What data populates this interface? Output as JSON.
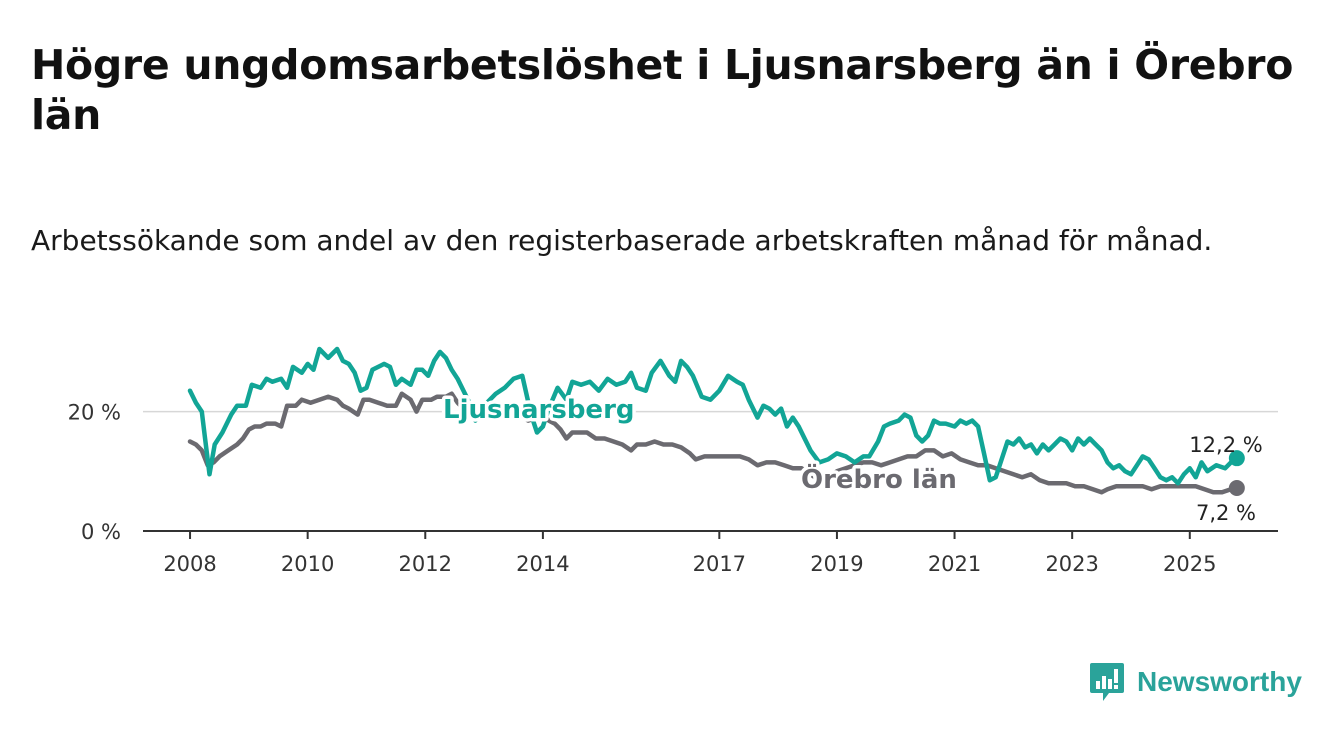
{
  "title": "Högre ungdomsarbetslöshet i Ljusnarsberg än i Örebro län",
  "subtitle": "Arbetssökande som andel av den registerbaserade arbetskraften månad för månad.",
  "brand": {
    "name": "Newsworthy",
    "icon": "bar-chart-chat-icon"
  },
  "colors": {
    "ljusnarsberg": "#12a596",
    "orebro": "#6b6a70",
    "grid": "#d7d7d7",
    "axis": "#333333"
  },
  "chart_data": {
    "type": "line",
    "xlabel": "",
    "ylabel": "",
    "ylim": [
      0,
      32
    ],
    "yticks": [
      {
        "value": 0,
        "label": "0 %"
      },
      {
        "value": 20,
        "label": "20 %"
      }
    ],
    "xticks": [
      {
        "value": 2008,
        "label": "2008"
      },
      {
        "value": 2010,
        "label": "2010"
      },
      {
        "value": 2012,
        "label": "2012"
      },
      {
        "value": 2014,
        "label": "2014"
      },
      {
        "value": 2017,
        "label": "2017"
      },
      {
        "value": 2019,
        "label": "2019"
      },
      {
        "value": 2021,
        "label": "2021"
      },
      {
        "value": 2023,
        "label": "2023"
      },
      {
        "value": 2025,
        "label": "2025"
      }
    ],
    "xlim": [
      2007.2,
      2026.5
    ],
    "series": [
      {
        "name": "Ljusnarsberg",
        "key": "ljusnarsberg",
        "label": "Ljusnarsberg",
        "end_label": "12,2 %",
        "points": [
          [
            2008.0,
            23.5
          ],
          [
            2008.1,
            21.5
          ],
          [
            2008.2,
            20.0
          ],
          [
            2008.25,
            16.0
          ],
          [
            2008.33,
            9.5
          ],
          [
            2008.42,
            14.5
          ],
          [
            2008.55,
            16.5
          ],
          [
            2008.7,
            19.5
          ],
          [
            2008.8,
            21.0
          ],
          [
            2008.95,
            21.0
          ],
          [
            2009.05,
            24.5
          ],
          [
            2009.2,
            24.0
          ],
          [
            2009.3,
            25.5
          ],
          [
            2009.4,
            25.0
          ],
          [
            2009.55,
            25.5
          ],
          [
            2009.65,
            24.0
          ],
          [
            2009.75,
            27.5
          ],
          [
            2009.9,
            26.5
          ],
          [
            2010.0,
            28.0
          ],
          [
            2010.1,
            27.0
          ],
          [
            2010.2,
            30.5
          ],
          [
            2010.35,
            29.0
          ],
          [
            2010.5,
            30.5
          ],
          [
            2010.6,
            28.5
          ],
          [
            2010.7,
            28.0
          ],
          [
            2010.8,
            26.5
          ],
          [
            2010.9,
            23.5
          ],
          [
            2011.0,
            24.0
          ],
          [
            2011.1,
            27.0
          ],
          [
            2011.2,
            27.5
          ],
          [
            2011.3,
            28.0
          ],
          [
            2011.4,
            27.5
          ],
          [
            2011.5,
            24.5
          ],
          [
            2011.6,
            25.5
          ],
          [
            2011.75,
            24.5
          ],
          [
            2011.85,
            27.0
          ],
          [
            2011.95,
            27.0
          ],
          [
            2012.05,
            26.0
          ],
          [
            2012.15,
            28.5
          ],
          [
            2012.25,
            30.0
          ],
          [
            2012.35,
            29.0
          ],
          [
            2012.45,
            27.0
          ],
          [
            2012.55,
            25.5
          ],
          [
            2012.65,
            23.5
          ],
          [
            2012.75,
            21.5
          ],
          [
            2012.85,
            18.5
          ],
          [
            2012.95,
            19.5
          ],
          [
            2013.05,
            21.5
          ],
          [
            2013.2,
            23.0
          ],
          [
            2013.35,
            24.0
          ],
          [
            2013.5,
            25.5
          ],
          [
            2013.65,
            26.0
          ],
          [
            2013.8,
            19.5
          ],
          [
            2013.9,
            16.5
          ],
          [
            2014.0,
            17.5
          ],
          [
            2014.1,
            20.5
          ],
          [
            2014.25,
            24.0
          ],
          [
            2014.4,
            22.0
          ],
          [
            2014.5,
            25.0
          ],
          [
            2014.65,
            24.5
          ],
          [
            2014.8,
            25.0
          ],
          [
            2014.95,
            23.5
          ],
          [
            2015.1,
            25.5
          ],
          [
            2015.25,
            24.5
          ],
          [
            2015.4,
            25.0
          ],
          [
            2015.5,
            26.5
          ],
          [
            2015.6,
            24.0
          ],
          [
            2015.75,
            23.5
          ],
          [
            2015.85,
            26.5
          ],
          [
            2016.0,
            28.5
          ],
          [
            2016.15,
            26.0
          ],
          [
            2016.25,
            25.0
          ],
          [
            2016.35,
            28.5
          ],
          [
            2016.45,
            27.5
          ],
          [
            2016.55,
            26.0
          ],
          [
            2016.7,
            22.5
          ],
          [
            2016.85,
            22.0
          ],
          [
            2017.0,
            23.5
          ],
          [
            2017.15,
            26.0
          ],
          [
            2017.3,
            25.0
          ],
          [
            2017.4,
            24.5
          ],
          [
            2017.5,
            22.0
          ],
          [
            2017.65,
            19.0
          ],
          [
            2017.75,
            21.0
          ],
          [
            2017.85,
            20.5
          ],
          [
            2017.95,
            19.5
          ],
          [
            2018.05,
            20.5
          ],
          [
            2018.15,
            17.5
          ],
          [
            2018.25,
            19.0
          ],
          [
            2018.35,
            17.5
          ],
          [
            2018.45,
            15.5
          ],
          [
            2018.55,
            13.5
          ],
          [
            2018.7,
            11.5
          ],
          [
            2018.85,
            12.0
          ],
          [
            2019.0,
            13.0
          ],
          [
            2019.15,
            12.5
          ],
          [
            2019.3,
            11.5
          ],
          [
            2019.45,
            12.5
          ],
          [
            2019.55,
            12.5
          ],
          [
            2019.7,
            15.0
          ],
          [
            2019.8,
            17.5
          ],
          [
            2019.9,
            18.0
          ],
          [
            2020.05,
            18.5
          ],
          [
            2020.15,
            19.5
          ],
          [
            2020.25,
            19.0
          ],
          [
            2020.35,
            16.0
          ],
          [
            2020.45,
            15.0
          ],
          [
            2020.55,
            16.0
          ],
          [
            2020.65,
            18.5
          ],
          [
            2020.75,
            18.0
          ],
          [
            2020.85,
            18.0
          ],
          [
            2021.0,
            17.5
          ],
          [
            2021.1,
            18.5
          ],
          [
            2021.2,
            18.0
          ],
          [
            2021.3,
            18.5
          ],
          [
            2021.4,
            17.5
          ],
          [
            2021.5,
            13.0
          ],
          [
            2021.6,
            8.5
          ],
          [
            2021.7,
            9.0
          ],
          [
            2021.8,
            12.0
          ],
          [
            2021.9,
            15.0
          ],
          [
            2022.0,
            14.5
          ],
          [
            2022.1,
            15.5
          ],
          [
            2022.2,
            14.0
          ],
          [
            2022.3,
            14.5
          ],
          [
            2022.4,
            13.0
          ],
          [
            2022.5,
            14.5
          ],
          [
            2022.6,
            13.5
          ],
          [
            2022.7,
            14.5
          ],
          [
            2022.8,
            15.5
          ],
          [
            2022.9,
            15.0
          ],
          [
            2023.0,
            13.5
          ],
          [
            2023.1,
            15.5
          ],
          [
            2023.2,
            14.5
          ],
          [
            2023.3,
            15.5
          ],
          [
            2023.4,
            14.5
          ],
          [
            2023.5,
            13.5
          ],
          [
            2023.6,
            11.5
          ],
          [
            2023.7,
            10.5
          ],
          [
            2023.8,
            11.0
          ],
          [
            2023.9,
            10.0
          ],
          [
            2024.0,
            9.5
          ],
          [
            2024.1,
            11.0
          ],
          [
            2024.2,
            12.5
          ],
          [
            2024.3,
            12.0
          ],
          [
            2024.4,
            10.5
          ],
          [
            2024.5,
            9.0
          ],
          [
            2024.6,
            8.5
          ],
          [
            2024.7,
            9.0
          ],
          [
            2024.8,
            8.0
          ],
          [
            2024.9,
            9.5
          ],
          [
            2025.0,
            10.5
          ],
          [
            2025.1,
            9.0
          ],
          [
            2025.2,
            11.5
          ],
          [
            2025.3,
            10.0
          ],
          [
            2025.45,
            11.0
          ],
          [
            2025.6,
            10.5
          ],
          [
            2025.7,
            11.5
          ],
          [
            2025.8,
            12.2
          ]
        ]
      },
      {
        "name": "Örebro län",
        "key": "orebro",
        "label": "Örebro län",
        "end_label": "7,2 %",
        "points": [
          [
            2008.0,
            15.0
          ],
          [
            2008.1,
            14.5
          ],
          [
            2008.2,
            13.5
          ],
          [
            2008.3,
            11.0
          ],
          [
            2008.4,
            11.5
          ],
          [
            2008.5,
            12.5
          ],
          [
            2008.65,
            13.5
          ],
          [
            2008.8,
            14.5
          ],
          [
            2008.9,
            15.5
          ],
          [
            2009.0,
            17.0
          ],
          [
            2009.1,
            17.5
          ],
          [
            2009.2,
            17.5
          ],
          [
            2009.3,
            18.0
          ],
          [
            2009.45,
            18.0
          ],
          [
            2009.55,
            17.5
          ],
          [
            2009.65,
            21.0
          ],
          [
            2009.8,
            21.0
          ],
          [
            2009.9,
            22.0
          ],
          [
            2010.05,
            21.5
          ],
          [
            2010.2,
            22.0
          ],
          [
            2010.35,
            22.5
          ],
          [
            2010.5,
            22.0
          ],
          [
            2010.6,
            21.0
          ],
          [
            2010.7,
            20.5
          ],
          [
            2010.85,
            19.5
          ],
          [
            2010.95,
            22.0
          ],
          [
            2011.05,
            22.0
          ],
          [
            2011.2,
            21.5
          ],
          [
            2011.35,
            21.0
          ],
          [
            2011.5,
            21.0
          ],
          [
            2011.6,
            23.0
          ],
          [
            2011.75,
            22.0
          ],
          [
            2011.85,
            20.0
          ],
          [
            2011.95,
            22.0
          ],
          [
            2012.1,
            22.0
          ],
          [
            2012.2,
            22.5
          ],
          [
            2012.35,
            22.5
          ],
          [
            2012.45,
            23.0
          ],
          [
            2012.55,
            21.5
          ],
          [
            2012.7,
            20.0
          ],
          [
            2012.85,
            19.0
          ],
          [
            2013.0,
            19.5
          ],
          [
            2013.15,
            19.0
          ],
          [
            2013.3,
            20.0
          ],
          [
            2013.45,
            19.5
          ],
          [
            2013.6,
            19.5
          ],
          [
            2013.75,
            18.5
          ],
          [
            2013.9,
            19.0
          ],
          [
            2014.0,
            19.5
          ],
          [
            2014.1,
            18.5
          ],
          [
            2014.2,
            18.0
          ],
          [
            2014.3,
            17.0
          ],
          [
            2014.4,
            15.5
          ],
          [
            2014.5,
            16.5
          ],
          [
            2014.6,
            16.5
          ],
          [
            2014.75,
            16.5
          ],
          [
            2014.9,
            15.5
          ],
          [
            2015.05,
            15.5
          ],
          [
            2015.2,
            15.0
          ],
          [
            2015.35,
            14.5
          ],
          [
            2015.5,
            13.5
          ],
          [
            2015.6,
            14.5
          ],
          [
            2015.75,
            14.5
          ],
          [
            2015.9,
            15.0
          ],
          [
            2016.05,
            14.5
          ],
          [
            2016.2,
            14.5
          ],
          [
            2016.35,
            14.0
          ],
          [
            2016.5,
            13.0
          ],
          [
            2016.6,
            12.0
          ],
          [
            2016.75,
            12.5
          ],
          [
            2016.9,
            12.5
          ],
          [
            2017.05,
            12.5
          ],
          [
            2017.2,
            12.5
          ],
          [
            2017.35,
            12.5
          ],
          [
            2017.5,
            12.0
          ],
          [
            2017.65,
            11.0
          ],
          [
            2017.8,
            11.5
          ],
          [
            2017.95,
            11.5
          ],
          [
            2018.1,
            11.0
          ],
          [
            2018.25,
            10.5
          ],
          [
            2018.4,
            10.5
          ],
          [
            2018.55,
            9.5
          ],
          [
            2018.7,
            8.5
          ],
          [
            2018.85,
            9.0
          ],
          [
            2019.0,
            10.0
          ],
          [
            2019.15,
            10.5
          ],
          [
            2019.3,
            11.0
          ],
          [
            2019.45,
            11.5
          ],
          [
            2019.6,
            11.5
          ],
          [
            2019.75,
            11.0
          ],
          [
            2019.9,
            11.5
          ],
          [
            2020.05,
            12.0
          ],
          [
            2020.2,
            12.5
          ],
          [
            2020.35,
            12.5
          ],
          [
            2020.5,
            13.5
          ],
          [
            2020.65,
            13.5
          ],
          [
            2020.8,
            12.5
          ],
          [
            2020.95,
            13.0
          ],
          [
            2021.1,
            12.0
          ],
          [
            2021.25,
            11.5
          ],
          [
            2021.4,
            11.0
          ],
          [
            2021.55,
            11.0
          ],
          [
            2021.7,
            10.5
          ],
          [
            2021.85,
            10.0
          ],
          [
            2022.0,
            9.5
          ],
          [
            2022.15,
            9.0
          ],
          [
            2022.3,
            9.5
          ],
          [
            2022.45,
            8.5
          ],
          [
            2022.6,
            8.0
          ],
          [
            2022.75,
            8.0
          ],
          [
            2022.9,
            8.0
          ],
          [
            2023.05,
            7.5
          ],
          [
            2023.2,
            7.5
          ],
          [
            2023.35,
            7.0
          ],
          [
            2023.5,
            6.5
          ],
          [
            2023.6,
            7.0
          ],
          [
            2023.75,
            7.5
          ],
          [
            2023.9,
            7.5
          ],
          [
            2024.05,
            7.5
          ],
          [
            2024.2,
            7.5
          ],
          [
            2024.35,
            7.0
          ],
          [
            2024.5,
            7.5
          ],
          [
            2024.65,
            7.5
          ],
          [
            2024.8,
            7.5
          ],
          [
            2024.95,
            7.5
          ],
          [
            2025.1,
            7.5
          ],
          [
            2025.25,
            7.0
          ],
          [
            2025.4,
            6.5
          ],
          [
            2025.55,
            6.5
          ],
          [
            2025.7,
            7.0
          ],
          [
            2025.8,
            7.2
          ]
        ]
      }
    ]
  }
}
